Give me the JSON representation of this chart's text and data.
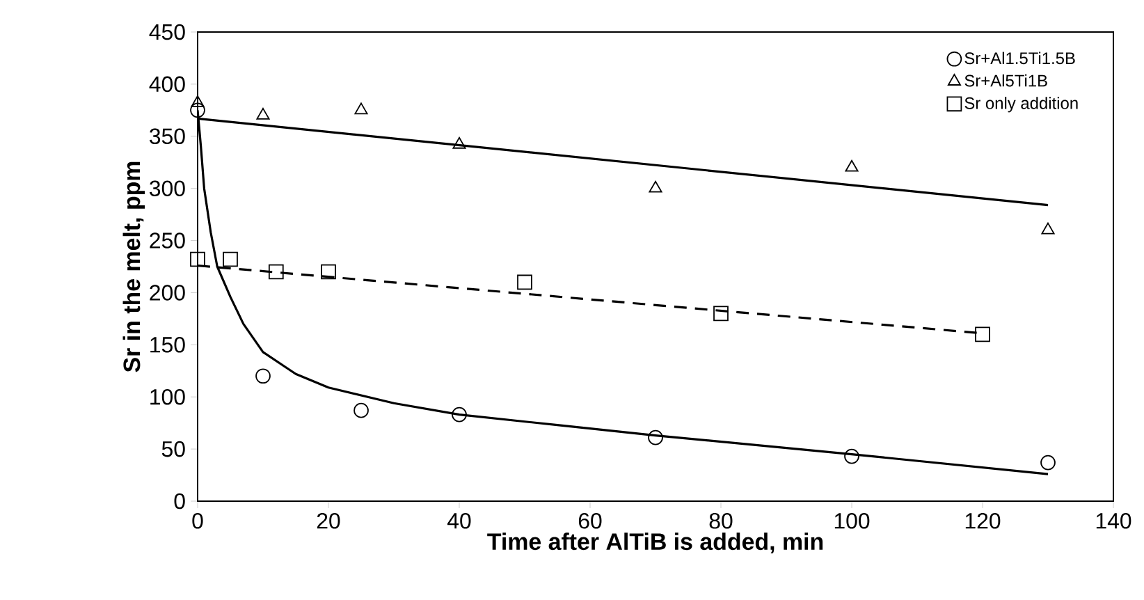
{
  "chart_data": {
    "type": "scatter",
    "xlabel": "Time after AlTiB is added, min",
    "ylabel": "Sr in the melt, ppm",
    "xlim": [
      0,
      140
    ],
    "xticks": [
      0,
      20,
      40,
      60,
      80,
      100,
      120,
      140
    ],
    "ylim": [
      0,
      450
    ],
    "yticks": [
      0,
      50,
      100,
      150,
      200,
      250,
      300,
      350,
      400,
      450
    ],
    "legend": "top right",
    "series": [
      {
        "name": "Sr+Al1.5Ti1.5B",
        "color": "#000000",
        "marker": "circle",
        "x": [
          0,
          10,
          25,
          40,
          70,
          100,
          130
        ],
        "values": [
          375,
          120,
          87,
          83,
          61,
          43,
          37
        ]
      },
      {
        "name": "Sr+Al5Ti1B",
        "color": "#000000",
        "marker": "triangle",
        "x": [
          0,
          10,
          25,
          40,
          70,
          100,
          130
        ],
        "values": [
          382,
          370,
          375,
          342,
          300,
          320,
          260
        ]
      },
      {
        "name": "Sr only addition",
        "color": "#000000",
        "marker": "square",
        "x": [
          0,
          5,
          12,
          20,
          50,
          80,
          120
        ],
        "values": [
          232,
          232,
          220,
          220,
          210,
          180,
          160
        ]
      },
      {
        "type": "line",
        "color": "#000000",
        "line_style": "solid",
        "x": [
          0,
          0.5,
          1,
          2,
          3,
          5,
          7,
          10,
          15,
          20,
          30,
          40,
          55,
          70,
          100,
          130
        ],
        "values": [
          375,
          340,
          300,
          258,
          225,
          196,
          170,
          143,
          122,
          109,
          94,
          83,
          73,
          63,
          45,
          26
        ]
      },
      {
        "type": "line",
        "color": "#000000",
        "line_style": "solid",
        "x": [
          0,
          130
        ],
        "values": [
          367,
          284
        ]
      },
      {
        "type": "line",
        "color": "#000000",
        "line_style": "dashed",
        "x": [
          0,
          120
        ],
        "values": [
          226,
          161
        ]
      }
    ]
  }
}
